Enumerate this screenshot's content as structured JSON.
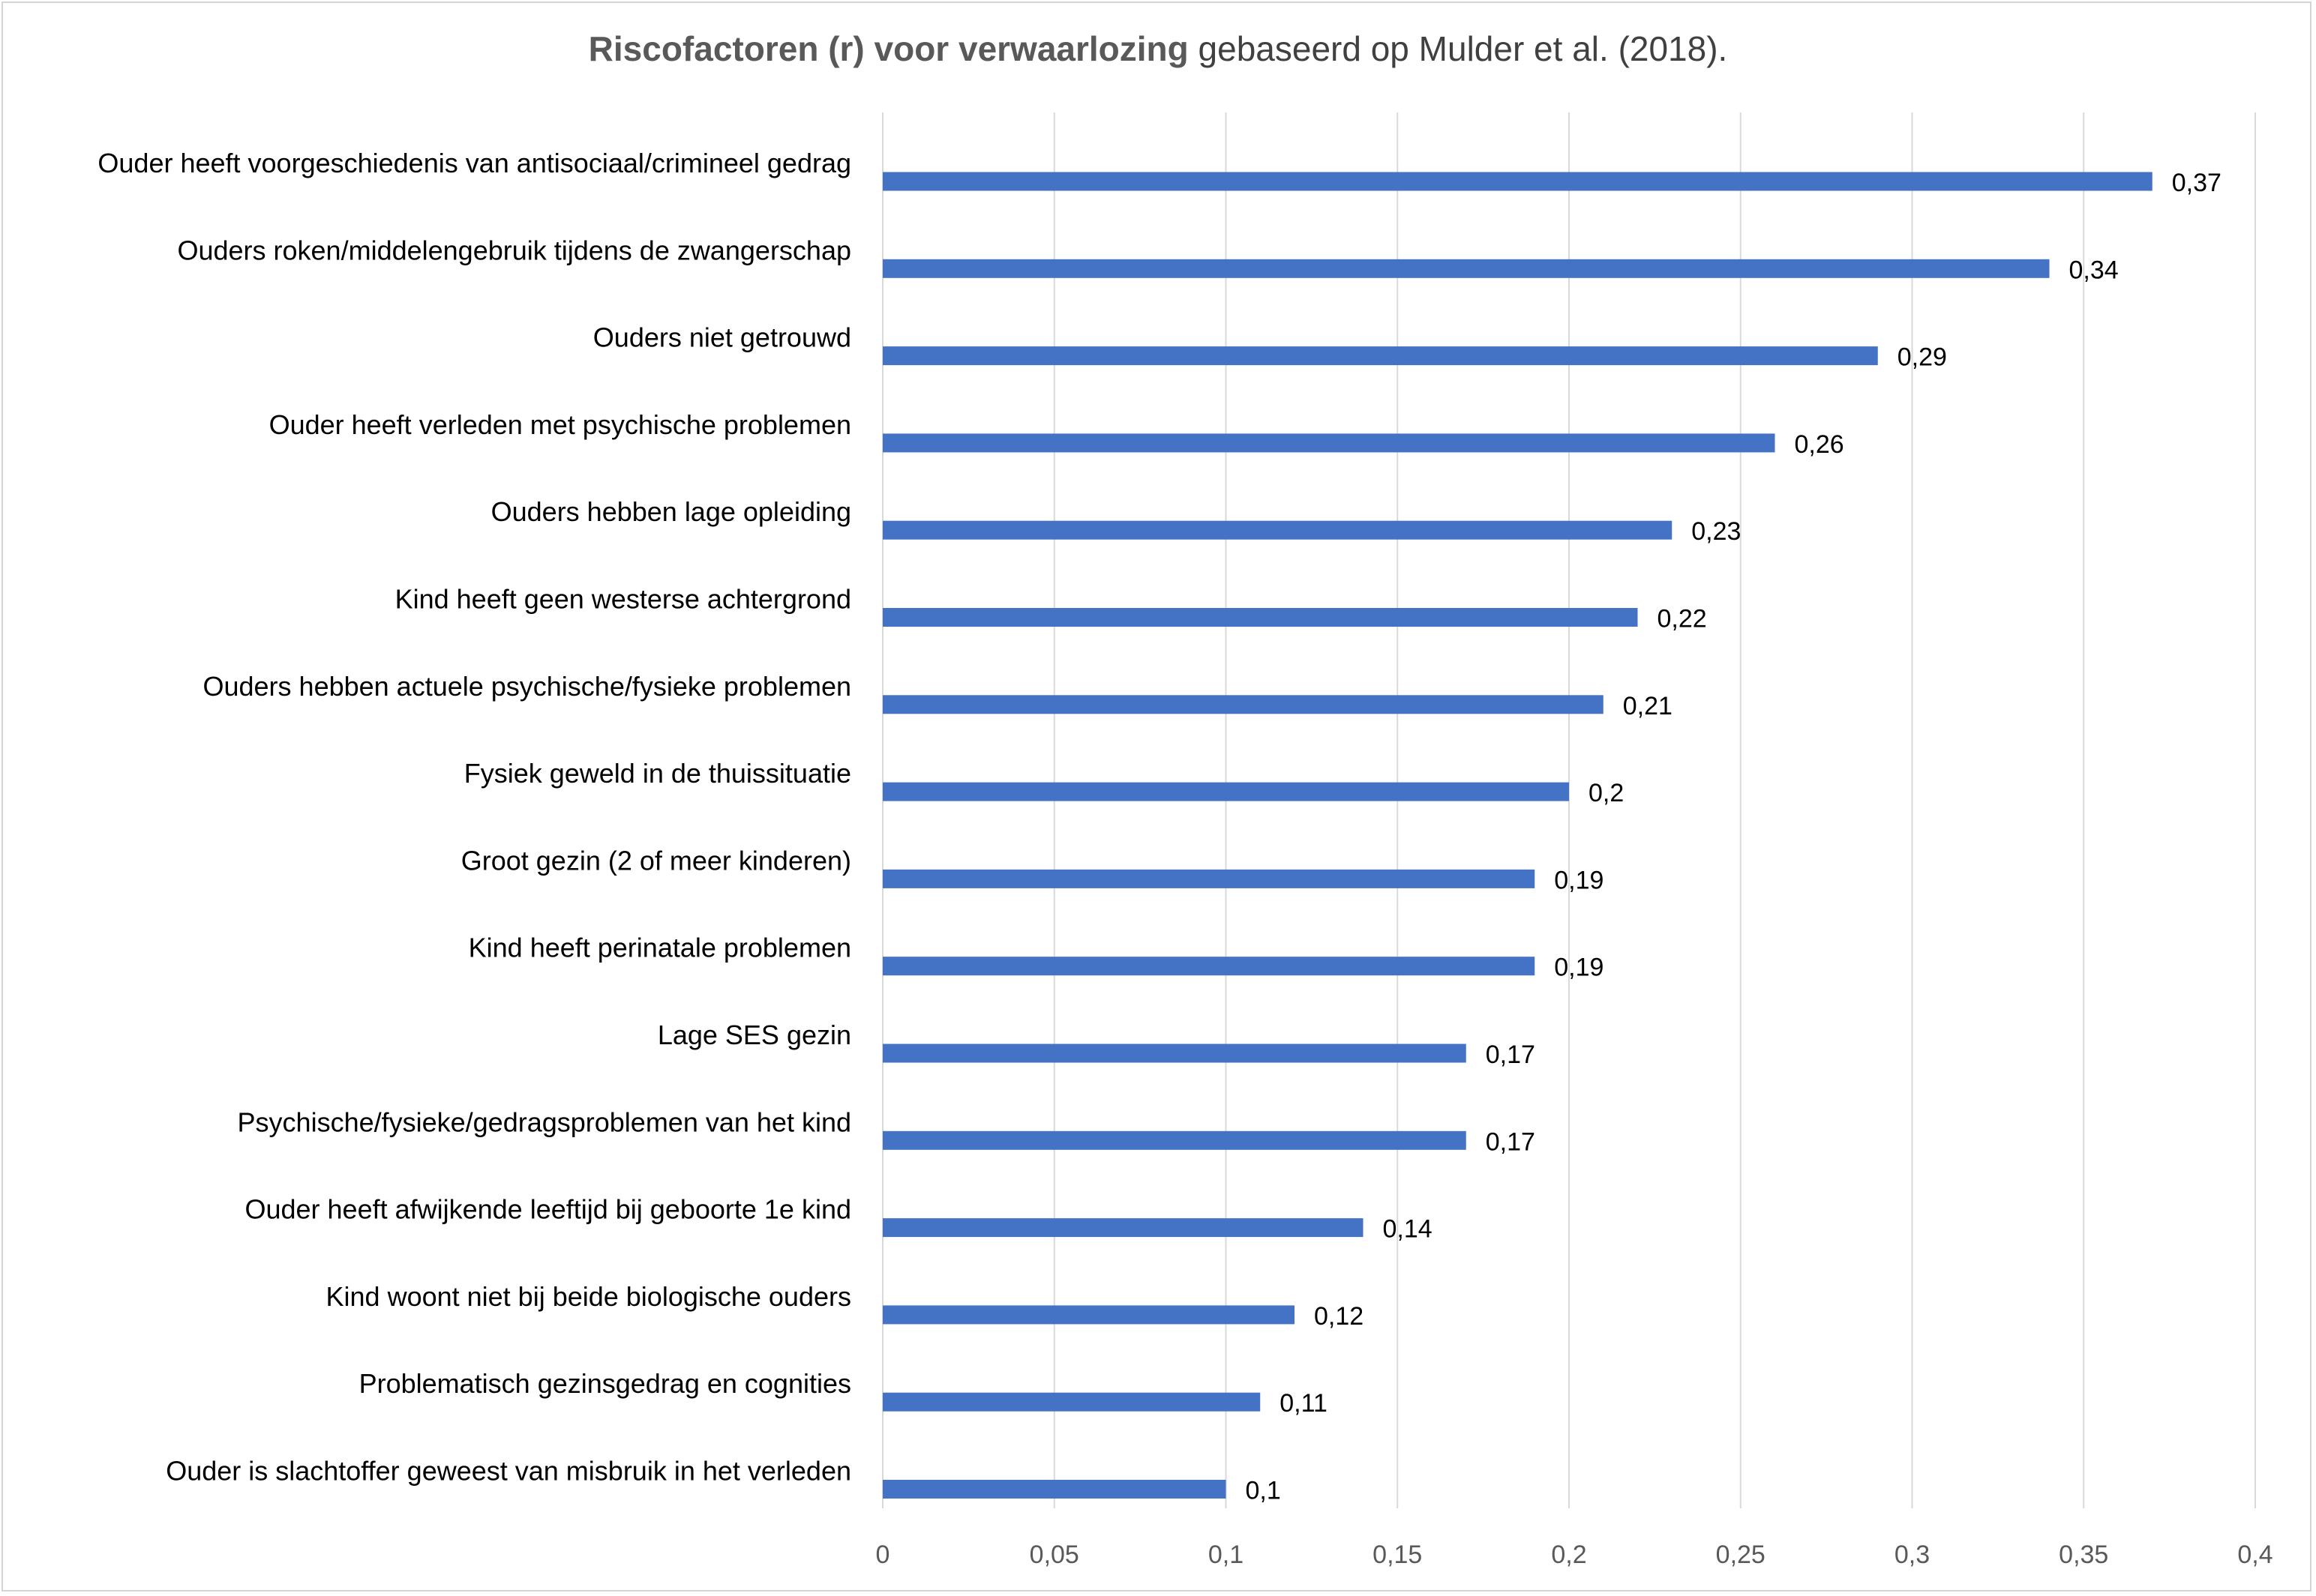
{
  "chart_data": {
    "type": "bar",
    "orientation": "horizontal",
    "title": "Riscofactoren (r) voor verwaarlozing",
    "subtitle": "gebaseerd op Mulder et al. (2018).",
    "xlabel": "",
    "ylabel": "",
    "xlim": [
      0,
      0.4
    ],
    "ticks": [
      "0",
      "0,05",
      "0,1",
      "0,15",
      "0,2",
      "0,25",
      "0,3",
      "0,35",
      "0,4"
    ],
    "grid": true,
    "legend": "none",
    "bar_color": "#4472C4",
    "categories": [
      "Ouder heeft voorgeschiedenis van antisociaal/crimineel gedrag",
      "Ouders roken/middelengebruik tijdens de zwangerschap",
      "Ouders niet getrouwd",
      "Ouder heeft verleden met psychische problemen",
      "Ouders hebben lage opleiding",
      "Kind heeft geen westerse achtergrond",
      "Ouders hebben actuele psychische/fysieke problemen",
      "Fysiek geweld in de thuissituatie",
      "Groot gezin (2 of meer kinderen)",
      "Kind heeft perinatale problemen",
      "Lage SES gezin",
      "Psychische/fysieke/gedragsproblemen van het kind",
      "Ouder heeft afwijkende leeftijd bij geboorte 1e kind",
      "Kind woont niet bij beide biologische ouders",
      "Problematisch gezinsgedrag en cognities",
      "Ouder is slachtoffer geweest van misbruik in het verleden"
    ],
    "values": [
      0.37,
      0.34,
      0.29,
      0.26,
      0.23,
      0.22,
      0.21,
      0.2,
      0.19,
      0.19,
      0.17,
      0.17,
      0.14,
      0.12,
      0.11,
      0.1
    ],
    "value_labels": [
      "0,37",
      "0,34",
      "0,29",
      "0,26",
      "0,23",
      "0,22",
      "0,21",
      "0,2",
      "0,19",
      "0,19",
      "0,17",
      "0,17",
      "0,14",
      "0,12",
      "0,11",
      "0,1"
    ]
  }
}
